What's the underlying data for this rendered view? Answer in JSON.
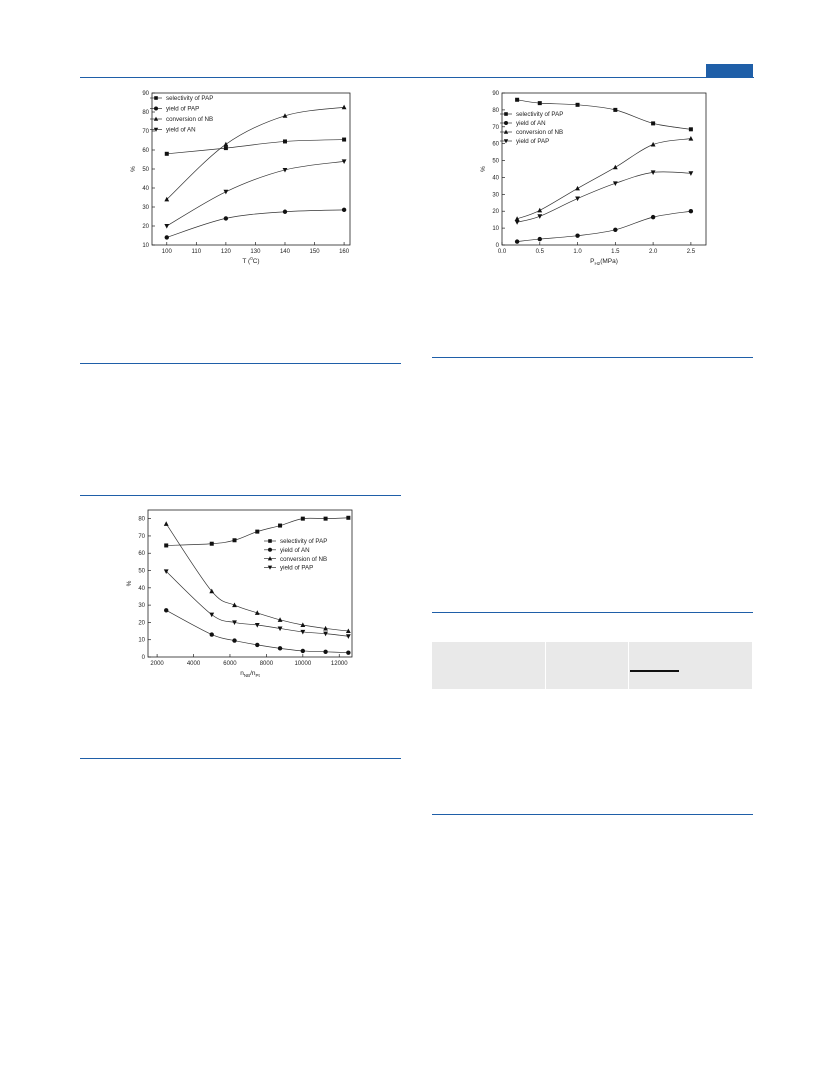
{
  "page": {
    "accent_color": "#1f5fa8",
    "table_fill_color": "#e9e9e9"
  },
  "chart_data": [
    {
      "id": "temperature",
      "type": "line",
      "xlabel_main": "T (",
      "xlabel_sup": "0",
      "xlabel_tail": "C)",
      "ylabel": "%",
      "xlim": [
        95,
        162
      ],
      "ylim": [
        10,
        90
      ],
      "xticks": [
        100,
        110,
        120,
        130,
        140,
        150,
        160
      ],
      "yticks": [
        10,
        20,
        30,
        40,
        50,
        60,
        70,
        80,
        90
      ],
      "legend_position": "top-left",
      "series": [
        {
          "name": "selectivity of PAP",
          "marker": "square",
          "x": [
            100,
            120,
            140,
            160
          ],
          "y": [
            58,
            61,
            64.5,
            65.5
          ]
        },
        {
          "name": "yield of PAP",
          "marker": "circle",
          "x": [
            100,
            120,
            140,
            160
          ],
          "y": [
            14,
            24,
            27.5,
            28.5
          ]
        },
        {
          "name": "conversion of NB",
          "marker": "triangle-up",
          "x": [
            100,
            120,
            140,
            160
          ],
          "y": [
            34,
            63,
            78,
            82.5
          ]
        },
        {
          "name": "yield of AN",
          "marker": "triangle-down",
          "x": [
            100,
            120,
            140,
            160
          ],
          "y": [
            20,
            38,
            49.5,
            54
          ]
        }
      ]
    },
    {
      "id": "pressure",
      "type": "line",
      "xlabel_main": "P",
      "xlabel_sub": "H2",
      "xlabel_tail": "(MPa)",
      "ylabel": "%",
      "xlim": [
        0.0,
        2.7
      ],
      "ylim": [
        0,
        90
      ],
      "xticks": [
        0.0,
        0.5,
        1.0,
        1.5,
        2.0,
        2.5
      ],
      "xtick_labels": [
        "0.0",
        "0.5",
        "1.0",
        "1.5",
        "2.0",
        "2.5"
      ],
      "yticks": [
        0,
        10,
        20,
        30,
        40,
        50,
        60,
        70,
        80,
        90
      ],
      "legend_position": "top-left",
      "series": [
        {
          "name": "selectivity of PAP",
          "marker": "square",
          "x": [
            0.2,
            0.5,
            1.0,
            1.5,
            2.0,
            2.5
          ],
          "y": [
            86,
            84,
            83,
            80,
            72,
            68.5
          ]
        },
        {
          "name": "yield of AN",
          "marker": "circle",
          "x": [
            0.2,
            0.5,
            1.0,
            1.5,
            2.0,
            2.5
          ],
          "y": [
            2,
            3.5,
            5.5,
            9,
            16.5,
            20
          ]
        },
        {
          "name": "conversion of NB",
          "marker": "triangle-up",
          "x": [
            0.2,
            0.5,
            1.0,
            1.5,
            2.0,
            2.5
          ],
          "y": [
            15.5,
            20.5,
            33.5,
            46,
            59.5,
            63
          ]
        },
        {
          "name": "yield of PAP",
          "marker": "triangle-down",
          "x": [
            0.2,
            0.5,
            1.0,
            1.5,
            2.0,
            2.5
          ],
          "y": [
            13.5,
            17,
            27.5,
            36.5,
            43,
            42.5
          ]
        }
      ]
    },
    {
      "id": "ratio",
      "type": "line",
      "xlabel_main": "n",
      "xlabel_sub": "NB",
      "xlabel_mid": "/n",
      "xlabel_sub2": "Pt",
      "ylabel": "%",
      "xlim": [
        1500,
        12700
      ],
      "ylim": [
        0,
        85
      ],
      "xticks": [
        2000,
        4000,
        6000,
        8000,
        10000,
        12000
      ],
      "yticks": [
        0,
        10,
        20,
        30,
        40,
        50,
        60,
        70,
        80
      ],
      "legend_position": "right",
      "series": [
        {
          "name": "selectivity of PAP",
          "marker": "square",
          "x": [
            2500,
            5000,
            6250,
            7500,
            8750,
            10000,
            11250,
            12500
          ],
          "y": [
            64.5,
            65.5,
            67.5,
            72.5,
            76,
            80,
            80,
            80.5
          ]
        },
        {
          "name": "yield of AN",
          "marker": "circle",
          "x": [
            2500,
            5000,
            6250,
            7500,
            8750,
            10000,
            11250,
            12500
          ],
          "y": [
            27,
            13,
            9.5,
            7,
            5,
            3.5,
            3,
            2.5
          ]
        },
        {
          "name": "conversion of NB",
          "marker": "triangle-up",
          "x": [
            2500,
            5000,
            6250,
            7500,
            8750,
            10000,
            11250,
            12500
          ],
          "y": [
            77,
            38,
            30,
            25.5,
            21.5,
            18.5,
            16.5,
            15
          ]
        },
        {
          "name": "yield of PAP",
          "marker": "triangle-down",
          "x": [
            2500,
            5000,
            6250,
            7500,
            8750,
            10000,
            11250,
            12500
          ],
          "y": [
            49.5,
            24.5,
            20,
            18.5,
            16.5,
            14.5,
            13.5,
            12
          ]
        }
      ]
    }
  ]
}
